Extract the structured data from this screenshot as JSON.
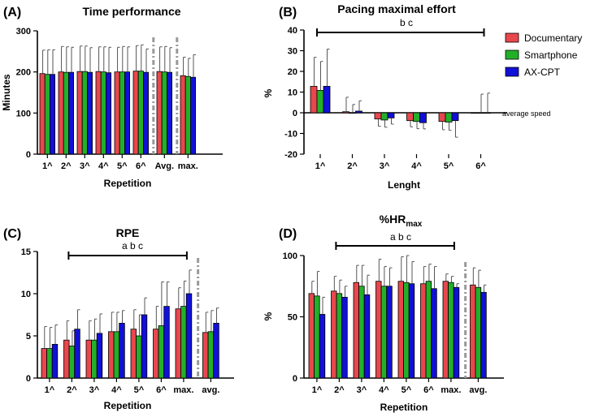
{
  "colors": {
    "documentary": "#e8474d",
    "smartphone": "#22b02a",
    "axcpt": "#1010d8",
    "separator": "#999999"
  },
  "legend": [
    {
      "name": "Documentary",
      "color": "#e8474d"
    },
    {
      "name": "Smartphone",
      "color": "#22b02a"
    },
    {
      "name": "AX-CPT",
      "color": "#1010d8"
    }
  ],
  "chart_data": [
    {
      "id": "A",
      "type": "bar",
      "letter": "(A)",
      "title": "Time performance",
      "ylabel": "Minutes",
      "xlabel": "Repetition",
      "ylim": [
        0,
        300
      ],
      "yticks": [
        0,
        100,
        200,
        300
      ],
      "categories": [
        "1^",
        "2^",
        "3^",
        "4^",
        "5^",
        "6^",
        "Avg.",
        "max."
      ],
      "separators_after": [
        6,
        7
      ],
      "series": [
        {
          "name": "Documentary",
          "values": [
            196,
            200,
            201,
            201,
            200,
            202,
            201,
            191
          ],
          "errors": [
            57,
            62,
            62,
            60,
            60,
            62,
            60,
            45
          ]
        },
        {
          "name": "Smartphone",
          "values": [
            194,
            199,
            201,
            200,
            200,
            202,
            200,
            189
          ],
          "errors": [
            60,
            62,
            62,
            61,
            62,
            64,
            62,
            44
          ]
        },
        {
          "name": "AX-CPT",
          "values": [
            194,
            199,
            199,
            198,
            200,
            199,
            199,
            187
          ],
          "errors": [
            60,
            61,
            60,
            62,
            61,
            57,
            60,
            55
          ]
        }
      ]
    },
    {
      "id": "B",
      "type": "bar",
      "letter": "(B)",
      "title": "Pacing maximal effort",
      "ylabel": "%",
      "xlabel": "Lenght",
      "ylim": [
        -20,
        40
      ],
      "yticks": [
        -20,
        -10,
        0,
        10,
        20,
        30,
        40
      ],
      "categories": [
        "1^",
        "2^",
        "3^",
        "4^",
        "5^",
        "6^"
      ],
      "baseline_note": "average speed",
      "significance": {
        "text": "b c",
        "from": 0,
        "to": 5
      },
      "series": [
        {
          "name": "Documentary",
          "values": [
            12.8,
            0.5,
            -3,
            -3.8,
            -4.2,
            0
          ],
          "errors": [
            14,
            7,
            3.5,
            3,
            4,
            0
          ]
        },
        {
          "name": "Smartphone",
          "values": [
            10.8,
            0,
            -3.5,
            -4.2,
            -4.5,
            0
          ],
          "errors": [
            14,
            4,
            3.5,
            3.5,
            4,
            9
          ]
        },
        {
          "name": "AX-CPT",
          "values": [
            12.8,
            0.8,
            -2.5,
            -4.8,
            -3.8,
            0
          ],
          "errors": [
            18,
            5,
            3,
            3,
            8,
            9.5
          ]
        }
      ]
    },
    {
      "id": "C",
      "type": "bar",
      "letter": "(C)",
      "title": "RPE",
      "ylabel": "",
      "xlabel": "Repetition",
      "ylim": [
        0,
        15
      ],
      "yticks": [
        0,
        5,
        10,
        15
      ],
      "categories": [
        "1^",
        "2^",
        "3^",
        "4^",
        "5^",
        "6^",
        "max.",
        "avg."
      ],
      "separators_after": [
        7
      ],
      "significance": {
        "text": "a b c",
        "from": 1,
        "to": 6
      },
      "series": [
        {
          "name": "Documentary",
          "values": [
            3.5,
            4.5,
            4.5,
            5.5,
            5.8,
            5.8,
            8.2,
            5.4
          ],
          "errors": [
            2.6,
            2.3,
            2.3,
            2.3,
            2.3,
            2.7,
            2.5,
            2.4
          ]
        },
        {
          "name": "Smartphone",
          "values": [
            3.5,
            3.8,
            4.5,
            5.5,
            5,
            6.2,
            8.5,
            5.5
          ],
          "errors": [
            2.5,
            1.8,
            2.5,
            2.3,
            2.5,
            5.2,
            3,
            2.5
          ]
        },
        {
          "name": "AX-CPT",
          "values": [
            4,
            5.8,
            5.3,
            6.5,
            7.5,
            8.5,
            10,
            6.5
          ],
          "errors": [
            2.3,
            2.3,
            2.3,
            1.5,
            2,
            2.9,
            2.8,
            1.8
          ]
        }
      ]
    },
    {
      "id": "D",
      "type": "bar",
      "letter": "(D)",
      "title": "%HR",
      "title_sub": "max",
      "ylabel": "%",
      "xlabel": "Repetition",
      "ylim": [
        0,
        100
      ],
      "yticks": [
        0,
        50,
        100
      ],
      "categories": [
        "1^",
        "2^",
        "3^",
        "4^",
        "5^",
        "6^",
        "max.",
        "avg."
      ],
      "separators_after": [
        7
      ],
      "significance": {
        "text": "a b c",
        "from": 1,
        "to": 6
      },
      "series": [
        {
          "name": "Documentary",
          "values": [
            69,
            71,
            78,
            79,
            79,
            77,
            79,
            76
          ],
          "errors": [
            10,
            12,
            14,
            18,
            20,
            14,
            6,
            14
          ]
        },
        {
          "name": "Smartphone",
          "values": [
            67,
            69,
            75,
            75,
            78,
            79,
            78,
            74
          ],
          "errors": [
            20,
            11,
            17,
            16,
            22,
            14,
            5,
            14
          ]
        },
        {
          "name": "AX-CPT",
          "values": [
            52,
            66,
            68,
            75,
            77,
            73,
            74,
            70
          ],
          "errors": [
            14,
            9,
            16,
            15,
            18,
            18,
            3,
            6
          ]
        }
      ]
    }
  ]
}
